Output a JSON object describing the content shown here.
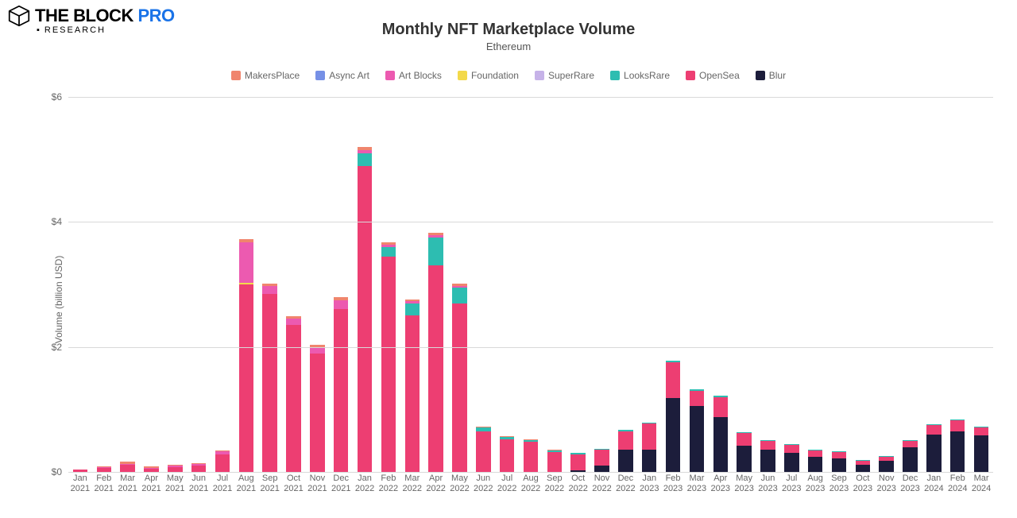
{
  "logo": {
    "main": "THE BLOCK",
    "suffix": "PRO",
    "research": "RESEARCH"
  },
  "title": "Monthly NFT Marketplace Volume",
  "subtitle": "Ethereum",
  "yaxis_title": "Volume (billion USD)",
  "colors": {
    "MakersPlace": "#f0856d",
    "Async Art": "#7690e6",
    "Art Blocks": "#ec5ab0",
    "Foundation": "#f3d94a",
    "SuperRare": "#c6b2e8",
    "LooksRare": "#2dbdb1",
    "OpenSea": "#ed3e72",
    "Blur": "#1c1d3b",
    "grid": "#d9d9d9",
    "background": "#ffffff",
    "text": "#666666"
  },
  "series_order": [
    "MakersPlace",
    "Async Art",
    "Art Blocks",
    "Foundation",
    "SuperRare",
    "LooksRare",
    "OpenSea",
    "Blur"
  ],
  "stack_order": [
    "Blur",
    "OpenSea",
    "LooksRare",
    "SuperRare",
    "Foundation",
    "Art Blocks",
    "Async Art",
    "MakersPlace"
  ],
  "yticks": [
    0,
    2,
    4,
    6
  ],
  "ytick_labels": [
    "$0",
    "$2",
    "$4",
    "$6"
  ],
  "ymin": 0,
  "ymax": 6,
  "bar_width_ratio": 0.62,
  "fontsize_title": 20,
  "fontsize_subtitle": 13,
  "fontsize_legend": 12,
  "fontsize_axis": 12,
  "fontsize_xlabel": 11,
  "months": [
    {
      "label": "Jan\n2021",
      "v": {
        "OpenSea": 0.04,
        "Art Blocks": 0.0,
        "MakersPlace": 0.0
      }
    },
    {
      "label": "Feb\n2021",
      "v": {
        "OpenSea": 0.07,
        "Art Blocks": 0.01,
        "MakersPlace": 0.01
      }
    },
    {
      "label": "Mar\n2021",
      "v": {
        "OpenSea": 0.11,
        "Art Blocks": 0.02,
        "MakersPlace": 0.03
      }
    },
    {
      "label": "Apr\n2021",
      "v": {
        "OpenSea": 0.06,
        "Art Blocks": 0.01,
        "MakersPlace": 0.02
      }
    },
    {
      "label": "May\n2021",
      "v": {
        "OpenSea": 0.08,
        "Art Blocks": 0.02,
        "MakersPlace": 0.01
      }
    },
    {
      "label": "Jun\n2021",
      "v": {
        "OpenSea": 0.1,
        "Art Blocks": 0.03,
        "MakersPlace": 0.01
      }
    },
    {
      "label": "Jul\n2021",
      "v": {
        "OpenSea": 0.28,
        "Art Blocks": 0.05,
        "MakersPlace": 0.01
      }
    },
    {
      "label": "Aug\n2021",
      "v": {
        "OpenSea": 3.0,
        "Art Blocks": 0.65,
        "Foundation": 0.03,
        "MakersPlace": 0.05
      }
    },
    {
      "label": "Sep\n2021",
      "v": {
        "OpenSea": 2.85,
        "Art Blocks": 0.12,
        "MakersPlace": 0.04
      }
    },
    {
      "label": "Oct\n2021",
      "v": {
        "OpenSea": 2.35,
        "Art Blocks": 0.1,
        "MakersPlace": 0.04
      }
    },
    {
      "label": "Nov\n2021",
      "v": {
        "OpenSea": 1.9,
        "Art Blocks": 0.1,
        "MakersPlace": 0.04
      }
    },
    {
      "label": "Dec\n2021",
      "v": {
        "OpenSea": 2.6,
        "Art Blocks": 0.15,
        "MakersPlace": 0.05
      }
    },
    {
      "label": "Jan\n2022",
      "v": {
        "OpenSea": 4.9,
        "LooksRare": 0.2,
        "Art Blocks": 0.05,
        "MakersPlace": 0.05
      }
    },
    {
      "label": "Feb\n2022",
      "v": {
        "OpenSea": 3.45,
        "LooksRare": 0.15,
        "Art Blocks": 0.04,
        "MakersPlace": 0.04
      }
    },
    {
      "label": "Mar\n2022",
      "v": {
        "OpenSea": 2.5,
        "LooksRare": 0.2,
        "Art Blocks": 0.03,
        "MakersPlace": 0.03
      }
    },
    {
      "label": "Apr\n2022",
      "v": {
        "OpenSea": 3.3,
        "LooksRare": 0.45,
        "Art Blocks": 0.04,
        "MakersPlace": 0.04
      }
    },
    {
      "label": "May\n2022",
      "v": {
        "OpenSea": 2.7,
        "LooksRare": 0.25,
        "Art Blocks": 0.03,
        "MakersPlace": 0.03
      }
    },
    {
      "label": "Jun\n2022",
      "v": {
        "OpenSea": 0.65,
        "LooksRare": 0.06,
        "MakersPlace": 0.02
      }
    },
    {
      "label": "Jul\n2022",
      "v": {
        "OpenSea": 0.52,
        "LooksRare": 0.04,
        "MakersPlace": 0.01
      }
    },
    {
      "label": "Aug\n2022",
      "v": {
        "OpenSea": 0.48,
        "LooksRare": 0.03,
        "MakersPlace": 0.01
      }
    },
    {
      "label": "Sep\n2022",
      "v": {
        "OpenSea": 0.32,
        "LooksRare": 0.02,
        "MakersPlace": 0.01
      }
    },
    {
      "label": "Oct\n2022",
      "v": {
        "OpenSea": 0.26,
        "LooksRare": 0.02,
        "Blur": 0.02
      }
    },
    {
      "label": "Nov\n2022",
      "v": {
        "OpenSea": 0.25,
        "LooksRare": 0.02,
        "Blur": 0.1
      }
    },
    {
      "label": "Dec\n2022",
      "v": {
        "OpenSea": 0.3,
        "LooksRare": 0.02,
        "Blur": 0.35
      }
    },
    {
      "label": "Jan\n2023",
      "v": {
        "OpenSea": 0.42,
        "LooksRare": 0.02,
        "Blur": 0.35
      }
    },
    {
      "label": "Feb\n2023",
      "v": {
        "OpenSea": 0.58,
        "LooksRare": 0.02,
        "Blur": 1.18
      }
    },
    {
      "label": "Mar\n2023",
      "v": {
        "OpenSea": 0.25,
        "LooksRare": 0.02,
        "Blur": 1.05
      }
    },
    {
      "label": "Apr\n2023",
      "v": {
        "OpenSea": 0.32,
        "LooksRare": 0.02,
        "Blur": 0.88
      }
    },
    {
      "label": "May\n2023",
      "v": {
        "OpenSea": 0.2,
        "LooksRare": 0.02,
        "Blur": 0.42
      }
    },
    {
      "label": "Jun\n2023",
      "v": {
        "OpenSea": 0.15,
        "LooksRare": 0.01,
        "Blur": 0.35
      }
    },
    {
      "label": "Jul\n2023",
      "v": {
        "OpenSea": 0.13,
        "LooksRare": 0.01,
        "Blur": 0.3
      }
    },
    {
      "label": "Aug\n2023",
      "v": {
        "OpenSea": 0.1,
        "LooksRare": 0.01,
        "Blur": 0.24
      }
    },
    {
      "label": "Sep\n2023",
      "v": {
        "OpenSea": 0.1,
        "LooksRare": 0.01,
        "Blur": 0.22
      }
    },
    {
      "label": "Oct\n2023",
      "v": {
        "OpenSea": 0.06,
        "LooksRare": 0.01,
        "Blur": 0.12
      }
    },
    {
      "label": "Nov\n2023",
      "v": {
        "OpenSea": 0.06,
        "LooksRare": 0.01,
        "Blur": 0.18
      }
    },
    {
      "label": "Dec\n2023",
      "v": {
        "OpenSea": 0.1,
        "LooksRare": 0.01,
        "Blur": 0.4
      }
    },
    {
      "label": "Jan\n2024",
      "v": {
        "OpenSea": 0.15,
        "LooksRare": 0.01,
        "Blur": 0.6
      }
    },
    {
      "label": "Feb\n2024",
      "v": {
        "OpenSea": 0.18,
        "LooksRare": 0.01,
        "Blur": 0.65
      }
    },
    {
      "label": "Mar\n2024",
      "v": {
        "OpenSea": 0.14,
        "LooksRare": 0.01,
        "Blur": 0.58
      }
    }
  ]
}
